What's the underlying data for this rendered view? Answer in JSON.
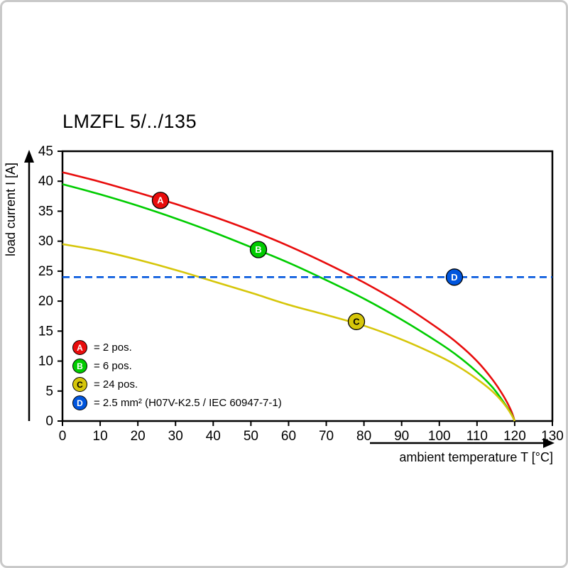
{
  "chart_data": {
    "type": "line",
    "title": "LMZFL 5/../135",
    "xlabel": "ambient temperature T [°C]",
    "ylabel": "load current I [A]",
    "xlim": [
      0,
      130
    ],
    "ylim": [
      0,
      45
    ],
    "xticks": [
      0,
      10,
      20,
      30,
      40,
      50,
      60,
      70,
      80,
      90,
      100,
      110,
      120,
      130
    ],
    "yticks": [
      0,
      5,
      10,
      15,
      20,
      25,
      30,
      35,
      40,
      45
    ],
    "grid": false,
    "legend_position": "inside-bottom-left",
    "axis_color": "#000000",
    "series": [
      {
        "name": "A",
        "label": "= 2 pos.",
        "color": "#e80c0c",
        "letter_color": "#ffffff",
        "style": "solid",
        "marker": [
          26,
          36.8
        ],
        "points": [
          [
            0,
            41.5
          ],
          [
            10,
            39.9
          ],
          [
            20,
            38.1
          ],
          [
            30,
            36.2
          ],
          [
            40,
            34.1
          ],
          [
            50,
            31.8
          ],
          [
            60,
            29.2
          ],
          [
            70,
            26.3
          ],
          [
            80,
            23.1
          ],
          [
            90,
            19.5
          ],
          [
            100,
            15.3
          ],
          [
            105,
            12.9
          ],
          [
            110,
            10.0
          ],
          [
            114,
            7.0
          ],
          [
            117,
            4.2
          ],
          [
            119,
            1.8
          ],
          [
            120,
            0
          ]
        ]
      },
      {
        "name": "B",
        "label": "= 6 pos.",
        "color": "#00cc00",
        "letter_color": "#ffffff",
        "style": "solid",
        "marker": [
          52,
          28.6
        ],
        "points": [
          [
            0,
            39.5
          ],
          [
            10,
            37.8
          ],
          [
            20,
            35.9
          ],
          [
            30,
            33.8
          ],
          [
            40,
            31.5
          ],
          [
            50,
            29.0
          ],
          [
            60,
            26.4
          ],
          [
            70,
            23.5
          ],
          [
            80,
            20.4
          ],
          [
            90,
            16.9
          ],
          [
            100,
            13.0
          ],
          [
            105,
            10.8
          ],
          [
            110,
            8.2
          ],
          [
            114,
            5.7
          ],
          [
            117,
            3.2
          ],
          [
            119,
            1.3
          ],
          [
            120,
            0
          ]
        ]
      },
      {
        "name": "C",
        "label": "= 24 pos.",
        "color": "#d6c60a",
        "letter_color": "#000000",
        "style": "solid",
        "marker": [
          78,
          16.6
        ],
        "points": [
          [
            0,
            29.5
          ],
          [
            10,
            28.4
          ],
          [
            20,
            26.9
          ],
          [
            30,
            25.2
          ],
          [
            40,
            23.3
          ],
          [
            50,
            21.4
          ],
          [
            60,
            19.4
          ],
          [
            70,
            17.7
          ],
          [
            80,
            15.9
          ],
          [
            90,
            13.6
          ],
          [
            100,
            10.8
          ],
          [
            105,
            9.1
          ],
          [
            110,
            7.0
          ],
          [
            114,
            5.0
          ],
          [
            117,
            3.0
          ],
          [
            119,
            1.2
          ],
          [
            120,
            0
          ]
        ]
      },
      {
        "name": "D",
        "label": "= 2.5 mm² (H07V-K2.5 / IEC 60947-7-1)",
        "color": "#0055dd",
        "letter_color": "#ffffff",
        "style": "dashed-horizontal",
        "value": 24,
        "marker": [
          104,
          24
        ]
      }
    ]
  }
}
